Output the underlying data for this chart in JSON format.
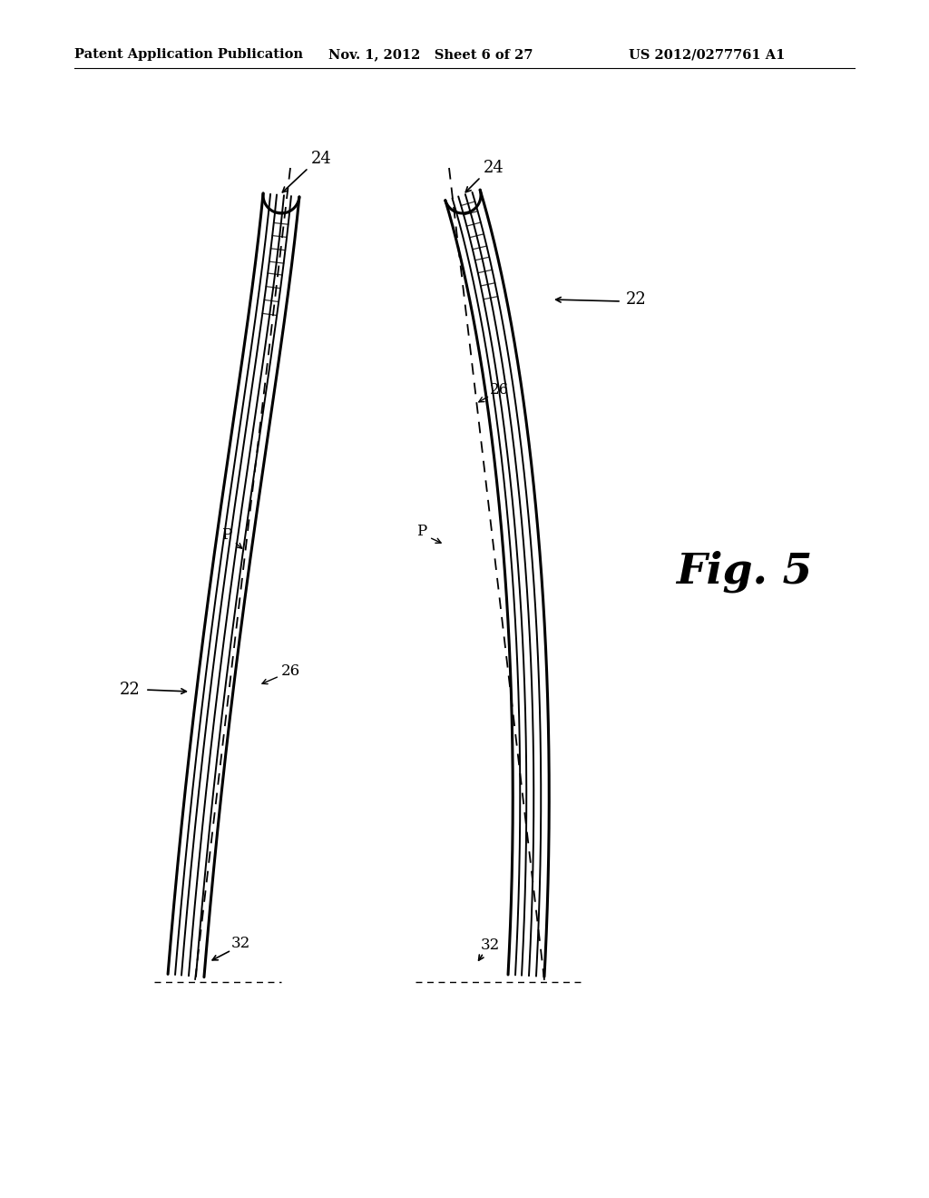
{
  "background_color": "#ffffff",
  "header_left": "Patent Application Publication",
  "header_mid": "Nov. 1, 2012   Sheet 6 of 27",
  "header_right": "US 2012/0277761 A1",
  "fig_label": "Fig. 5"
}
